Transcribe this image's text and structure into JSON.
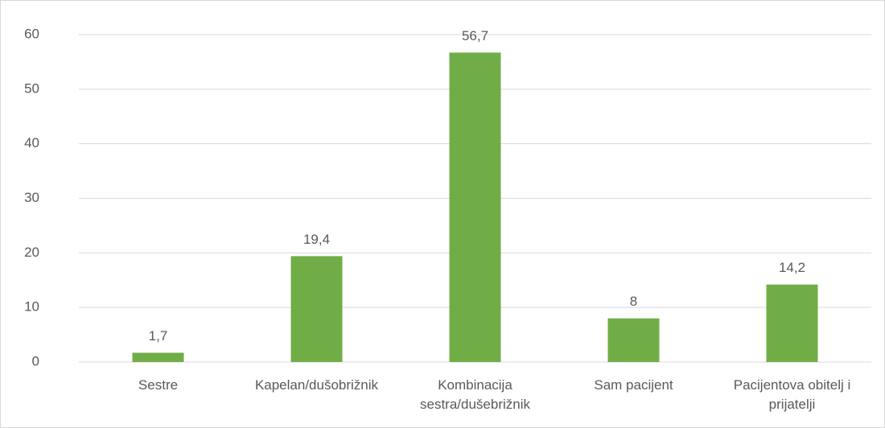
{
  "chart_data": {
    "type": "bar",
    "categories": [
      "Sestre",
      "Kapelan/dušobrižnik",
      "Kombinacija sestra/dušebrižnik",
      "Sam pacijent",
      "Pacijentova obitelj i prijatelji"
    ],
    "values": [
      1.7,
      19.4,
      56.7,
      8,
      14.2
    ],
    "value_labels": [
      "1,7",
      "19,4",
      "56,7",
      "8",
      "14,2"
    ],
    "color": "#70ad47",
    "ylim": [
      0,
      60
    ],
    "yticks": [
      0,
      10,
      20,
      30,
      40,
      50,
      60
    ],
    "grid": true
  }
}
